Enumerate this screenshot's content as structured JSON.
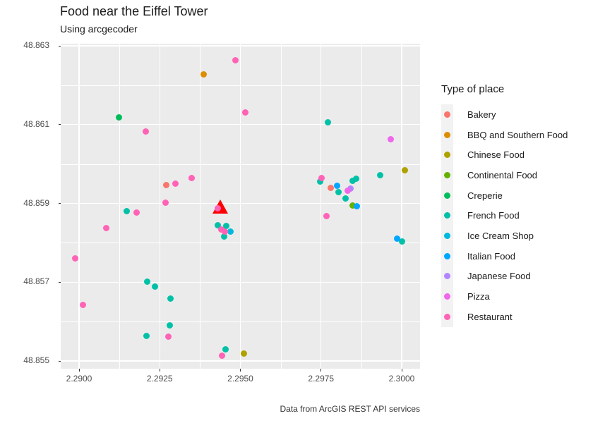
{
  "header": {
    "title": "Food near the Eiffel Tower",
    "subtitle": "Using arcgecoder"
  },
  "caption": "Data from ArcGIS REST API services",
  "legend": {
    "title": "Type of place"
  },
  "chart_data": {
    "type": "scatter",
    "title": "Food near the Eiffel Tower",
    "subtitle": "Using arcgecoder",
    "caption": "Data from ArcGIS REST API services",
    "xlabel": "",
    "ylabel": "",
    "legend_title": "Type of place",
    "legend_position": "right",
    "grid": "white major and minor gridlines on grey panel",
    "panel_color": "#EBEBEB",
    "legend_key_color": "#F2F2F2",
    "xlim": [
      2.28943,
      2.30057
    ],
    "ylim": [
      48.85481,
      48.86305
    ],
    "x_ticks": {
      "values": [
        2.29,
        2.2925,
        2.295,
        2.2975,
        2.3
      ],
      "labels": [
        "2.2900",
        "2.2925",
        "2.2950",
        "2.2975",
        "2.3000"
      ]
    },
    "y_ticks": {
      "values": [
        48.863,
        48.861,
        48.859,
        48.857,
        48.855
      ],
      "labels": [
        "48.863",
        "48.861",
        "48.859",
        "48.857",
        "48.855"
      ]
    },
    "landmark": {
      "name": "Eiffel Tower",
      "marker": "red triangle",
      "color": "#FF0000",
      "lon": 2.29438,
      "lat": 48.85892
    },
    "series": [
      {
        "name": "Bakery",
        "color": "#F8766D",
        "points": [
          [
            2.29271,
            48.85946
          ],
          [
            2.29781,
            48.8594
          ]
        ]
      },
      {
        "name": "BBQ and Southern Food",
        "color": "#DB8E00",
        "points": [
          [
            2.29387,
            48.86228
          ]
        ]
      },
      {
        "name": "Chinese Food",
        "color": "#AEA200",
        "points": [
          [
            2.30009,
            48.85985
          ],
          [
            2.2951,
            48.85518
          ]
        ]
      },
      {
        "name": "Continental Food",
        "color": "#64B200",
        "points": [
          [
            2.29849,
            48.85894
          ]
        ]
      },
      {
        "name": "Creperie",
        "color": "#00BD5C",
        "points": [
          [
            2.29123,
            48.86119
          ]
        ]
      },
      {
        "name": "French Food",
        "color": "#00C1A7",
        "points": [
          [
            2.29772,
            48.86105
          ],
          [
            2.29934,
            48.85971
          ],
          [
            2.29147,
            48.85881
          ],
          [
            2.29212,
            48.85702
          ],
          [
            2.29236,
            48.85688
          ],
          [
            2.29284,
            48.85659
          ],
          [
            2.29282,
            48.8559
          ],
          [
            2.2921,
            48.85564
          ],
          [
            2.29453,
            48.85529
          ],
          [
            2.29431,
            48.85845
          ],
          [
            2.29457,
            48.85842
          ],
          [
            2.29449,
            48.85815
          ],
          [
            2.29748,
            48.85955
          ],
          [
            2.29805,
            48.85928
          ],
          [
            2.29849,
            48.85958
          ],
          [
            2.29858,
            48.85962
          ],
          [
            2.29825,
            48.85913
          ],
          [
            2.3,
            48.85804
          ]
        ]
      },
      {
        "name": "Ice Cream Shop",
        "color": "#00BADE",
        "points": [
          [
            2.2947,
            48.85828
          ]
        ]
      },
      {
        "name": "Italian Food",
        "color": "#00A6FF",
        "points": [
          [
            2.29799,
            48.85944
          ],
          [
            2.2986,
            48.85892
          ],
          [
            2.29985,
            48.8581
          ]
        ]
      },
      {
        "name": "Japanese Food",
        "color": "#B385FF",
        "points": [
          [
            2.29842,
            48.85937
          ]
        ]
      },
      {
        "name": "Pizza",
        "color": "#EF67EB",
        "points": [
          [
            2.29965,
            48.86062
          ],
          [
            2.29832,
            48.85933
          ]
        ]
      },
      {
        "name": "Restaurant",
        "color": "#FF63B6",
        "points": [
          [
            2.29484,
            48.86264
          ],
          [
            2.29516,
            48.8613
          ],
          [
            2.29206,
            48.86082
          ],
          [
            2.29298,
            48.85951
          ],
          [
            2.29348,
            48.85964
          ],
          [
            2.29267,
            48.85901
          ],
          [
            2.29179,
            48.85876
          ],
          [
            2.29085,
            48.85838
          ],
          [
            2.28989,
            48.8576
          ],
          [
            2.29011,
            48.85643
          ],
          [
            2.29276,
            48.85561
          ],
          [
            2.29444,
            48.85513
          ],
          [
            2.29431,
            48.85887
          ],
          [
            2.2944,
            48.85833
          ],
          [
            2.29451,
            48.85829
          ],
          [
            2.29766,
            48.85867
          ],
          [
            2.29751,
            48.85964
          ]
        ]
      }
    ]
  }
}
